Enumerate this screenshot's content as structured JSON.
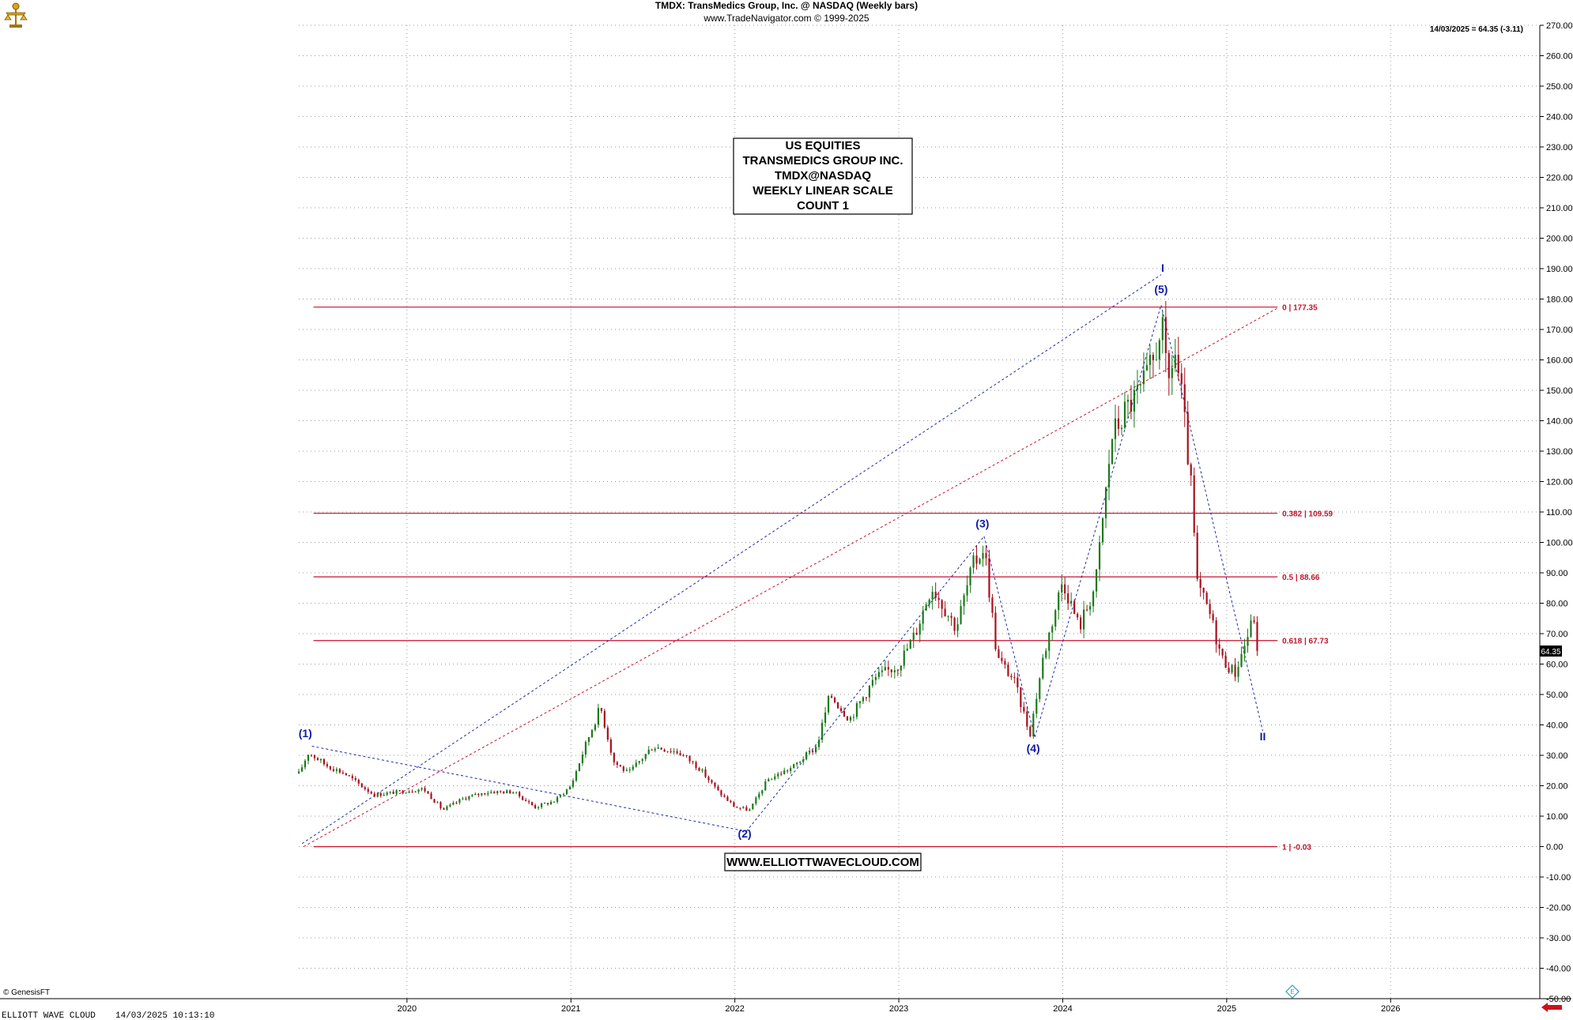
{
  "header": {
    "title": "TMDX:  TransMedics Group, Inc. @ NASDAQ  (Weekly bars)",
    "subtitle": "www.TradeNavigator.com © 1999-2025",
    "last_price_readout": "14/03/2025 = 64.35 (-3.11)",
    "current_price_tag": "64.35"
  },
  "info_box": {
    "lines": [
      "US EQUITIES",
      "TRANSMEDICS GROUP INC.",
      "TMDX@NASDAQ",
      "WEEKLY LINEAR SCALE",
      "COUNT 1"
    ]
  },
  "watermark": "WWW.ELLIOTTWAVECLOUD.COM",
  "copyright": "© GenesisFT",
  "footer": {
    "source": "ELLIOTT WAVE CLOUD",
    "timestamp": "14/03/2025 10:13:10"
  },
  "colors": {
    "up_bar": "#1b7a1b",
    "down_bar": "#a5121e",
    "fib_line": "#c8102e",
    "wave_label": "#0f1aa6",
    "trend_blue": "#1a2ba8",
    "trend_red": "#c8102e",
    "grid": "#9a9a9a",
    "arrow": "#d0101a"
  },
  "chart_data": {
    "type": "candlestick",
    "title": "TMDX:  TransMedics Group, Inc. @ NASDAQ  (Weekly bars)",
    "xlabel": "",
    "ylabel": "",
    "x_range": [
      2019.34,
      2026.91
    ],
    "ylim": [
      -50,
      270
    ],
    "y_ticks": [
      "270.00",
      "260.00",
      "250.00",
      "240.00",
      "230.00",
      "220.00",
      "210.00",
      "200.00",
      "190.00",
      "180.00",
      "170.00",
      "160.00",
      "150.00",
      "140.00",
      "130.00",
      "120.00",
      "110.00",
      "100.00",
      "90.00",
      "80.00",
      "70.00",
      "60.00",
      "50.00",
      "40.00",
      "30.00",
      "20.00",
      "10.00",
      "0.00",
      "-10.00",
      "-20.00",
      "-30.00",
      "-40.00",
      "-50.00"
    ],
    "x_ticks": [
      {
        "label": "2020",
        "x": 2020.0
      },
      {
        "label": "2021",
        "x": 2021.0
      },
      {
        "label": "2022",
        "x": 2022.0
      },
      {
        "label": "2023",
        "x": 2023.0
      },
      {
        "label": "2024",
        "x": 2024.0
      },
      {
        "label": "2025",
        "x": 2025.0
      },
      {
        "label": "2026",
        "x": 2026.0
      }
    ],
    "grid": true,
    "price_path": [
      [
        2019.34,
        24
      ],
      [
        2019.4,
        31
      ],
      [
        2019.5,
        27
      ],
      [
        2019.62,
        24
      ],
      [
        2019.72,
        20
      ],
      [
        2019.8,
        17
      ],
      [
        2019.95,
        18
      ],
      [
        2020.1,
        19
      ],
      [
        2020.22,
        12
      ],
      [
        2020.35,
        16
      ],
      [
        2020.5,
        18
      ],
      [
        2020.65,
        18
      ],
      [
        2020.78,
        13
      ],
      [
        2020.9,
        15
      ],
      [
        2021.0,
        20
      ],
      [
        2021.1,
        35
      ],
      [
        2021.18,
        46
      ],
      [
        2021.26,
        28
      ],
      [
        2021.35,
        24
      ],
      [
        2021.5,
        33
      ],
      [
        2021.66,
        31
      ],
      [
        2021.78,
        26
      ],
      [
        2021.9,
        18
      ],
      [
        2022.0,
        13
      ],
      [
        2022.09,
        12
      ],
      [
        2022.2,
        22
      ],
      [
        2022.35,
        26
      ],
      [
        2022.5,
        33
      ],
      [
        2022.58,
        50
      ],
      [
        2022.7,
        42
      ],
      [
        2022.85,
        55
      ],
      [
        2023.0,
        60
      ],
      [
        2023.1,
        70
      ],
      [
        2023.2,
        86
      ],
      [
        2023.35,
        72
      ],
      [
        2023.45,
        92
      ],
      [
        2023.52,
        99
      ],
      [
        2023.6,
        62
      ],
      [
        2023.7,
        55
      ],
      [
        2023.8,
        37
      ],
      [
        2023.88,
        62
      ],
      [
        2024.0,
        88
      ],
      [
        2024.1,
        72
      ],
      [
        2024.2,
        86
      ],
      [
        2024.3,
        135
      ],
      [
        2024.4,
        145
      ],
      [
        2024.48,
        150
      ],
      [
        2024.56,
        160
      ],
      [
        2024.6,
        174
      ],
      [
        2024.64,
        150
      ],
      [
        2024.68,
        164
      ],
      [
        2024.72,
        150
      ],
      [
        2024.78,
        120
      ],
      [
        2024.82,
        86
      ],
      [
        2024.9,
        76
      ],
      [
        2024.97,
        62
      ],
      [
        2025.05,
        57
      ],
      [
        2025.12,
        68
      ],
      [
        2025.17,
        76
      ],
      [
        2025.2,
        64.35
      ]
    ],
    "last_close": 64.35,
    "change": -3.11,
    "fib_levels": [
      {
        "ratio": "0",
        "price": 177.35,
        "label": "0 | 177.35"
      },
      {
        "ratio": "0.382",
        "price": 109.59,
        "label": "0.382 | 109.59"
      },
      {
        "ratio": "0.5",
        "price": 88.66,
        "label": "0.5 | 88.66"
      },
      {
        "ratio": "0.618",
        "price": 67.73,
        "label": "0.618 | 67.73"
      },
      {
        "ratio": "1",
        "price": -0.03,
        "label": "1 | -0.03"
      }
    ],
    "fib_x_range": [
      2019.43,
      2025.31
    ],
    "wave_labels": [
      {
        "label": "(1)",
        "x": 2019.38,
        "y": 36
      },
      {
        "label": "(2)",
        "x": 2022.06,
        "y": 3
      },
      {
        "label": "(3)",
        "x": 2023.51,
        "y": 105
      },
      {
        "label": "(4)",
        "x": 2023.82,
        "y": 31
      },
      {
        "label": "(5)",
        "x": 2024.6,
        "y": 182
      },
      {
        "label": "I",
        "x": 2024.61,
        "y": 189
      },
      {
        "label": "II",
        "x": 2025.22,
        "y": 35
      }
    ],
    "trendlines_blue": [
      [
        [
          2019.36,
          1
        ],
        [
          2024.6,
          188
        ]
      ],
      [
        [
          2019.42,
          33
        ],
        [
          2022.07,
          5
        ]
      ],
      [
        [
          2022.07,
          5
        ],
        [
          2023.52,
          102
        ]
      ],
      [
        [
          2023.52,
          102
        ],
        [
          2023.83,
          36
        ]
      ],
      [
        [
          2023.83,
          36
        ],
        [
          2024.6,
          178
        ]
      ],
      [
        [
          2024.6,
          178
        ],
        [
          2025.22,
          38
        ]
      ]
    ],
    "trendlines_red": [
      [
        [
          2019.37,
          0
        ],
        [
          2025.31,
          177
        ]
      ]
    ]
  }
}
